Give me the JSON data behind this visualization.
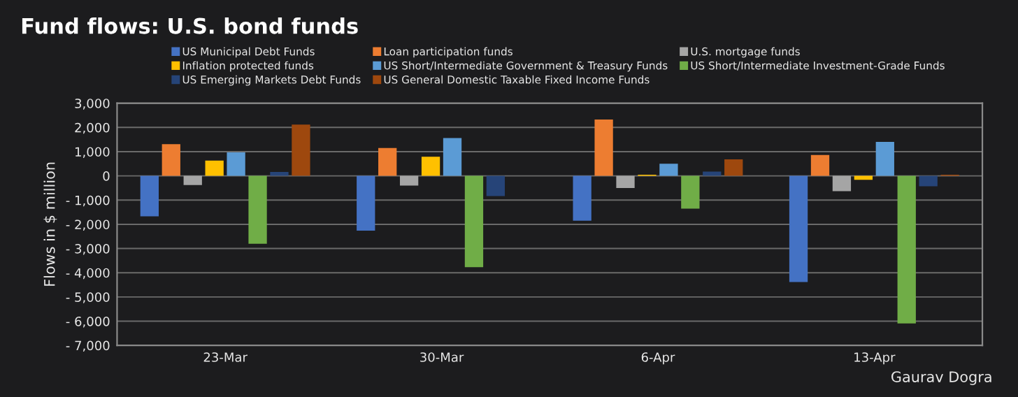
{
  "chart_data": {
    "type": "bar",
    "title": "Fund flows: U.S. bond funds",
    "ylabel": "Flows in $ million",
    "categories": [
      "23-Mar",
      "30-Mar",
      "6-Apr",
      "13-Apr"
    ],
    "series": [
      {
        "name": "US Municipal Debt Funds",
        "color": "#4472c4",
        "values": [
          -1670,
          -2260,
          -1850,
          -4380
        ]
      },
      {
        "name": "Loan participation funds",
        "color": "#ed7d31",
        "values": [
          1310,
          1150,
          2330,
          860
        ]
      },
      {
        "name": "U.S. mortgage funds",
        "color": "#a5a5a5",
        "values": [
          -380,
          -400,
          -500,
          -630
        ]
      },
      {
        "name": "Inflation protected funds",
        "color": "#ffc000",
        "values": [
          630,
          790,
          50,
          -160
        ]
      },
      {
        "name": "US Short/Intermediate Government & Treasury Funds",
        "color": "#5b9bd5",
        "values": [
          970,
          1560,
          500,
          1400
        ]
      },
      {
        "name": "US Short/Intermediate Investment-Grade Funds",
        "color": "#70ad47",
        "values": [
          -2800,
          -3770,
          -1350,
          -6090
        ]
      },
      {
        "name": "US Emerging Markets Debt Funds",
        "color": "#264478",
        "values": [
          160,
          -830,
          180,
          -430
        ]
      },
      {
        "name": "US General Domestic Taxable Fixed Income Funds",
        "color": "#9e480e",
        "values": [
          2120,
          null,
          680,
          50
        ]
      }
    ],
    "ylim": [
      -7000,
      3000
    ],
    "yticks": [
      {
        "value": -7000,
        "label": "- 7,000"
      },
      {
        "value": -6000,
        "label": "- 6,000"
      },
      {
        "value": -5000,
        "label": "- 5,000"
      },
      {
        "value": -4000,
        "label": "- 4,000"
      },
      {
        "value": -3000,
        "label": "- 3,000"
      },
      {
        "value": -2000,
        "label": "- 2,000"
      },
      {
        "value": -1000,
        "label": "- 1,000"
      },
      {
        "value": 0,
        "label": "0"
      },
      {
        "value": 1000,
        "label": "1,000"
      },
      {
        "value": 2000,
        "label": "2,000"
      },
      {
        "value": 3000,
        "label": "3,000"
      }
    ],
    "grid": "y",
    "legend": "top",
    "annotations": [
      "Gaurav Dogra"
    ]
  }
}
